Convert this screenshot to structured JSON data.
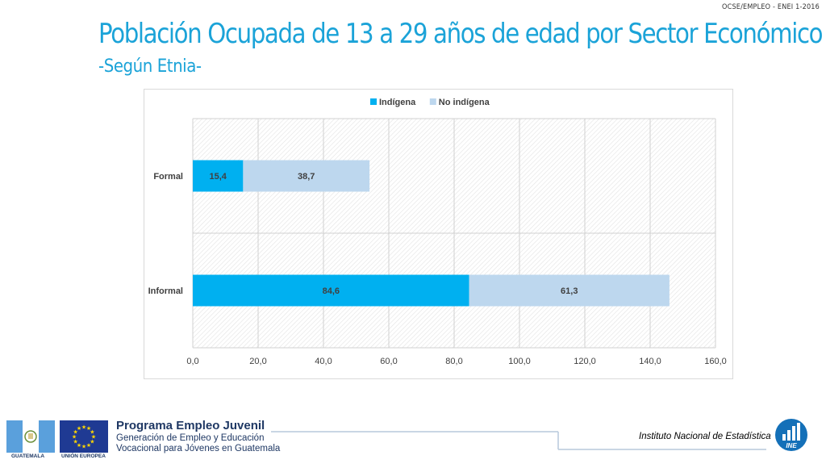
{
  "header": {
    "corner_label": "OCSE/EMPLEO -  ENEI 1-2016",
    "title": "Población Ocupada de 13 a 29 años de edad por Sector Económico",
    "subtitle": "-Según Etnia-"
  },
  "chart_data": {
    "type": "bar",
    "orientation": "horizontal",
    "stacked": true,
    "categories": [
      "Formal",
      "Informal"
    ],
    "series": [
      {
        "name": "Indígena",
        "values": [
          15.4,
          84.6
        ],
        "color": "#00b0f0",
        "labels": [
          "15,4",
          "84,6"
        ]
      },
      {
        "name": "No indígena",
        "values": [
          38.7,
          61.3
        ],
        "color": "#bdd7ee",
        "labels": [
          "38,7",
          "61,3"
        ]
      }
    ],
    "xlim": [
      0,
      160
    ],
    "xticks": [
      "0,0",
      "20,0",
      "40,0",
      "60,0",
      "80,0",
      "100,0",
      "120,0",
      "140,0",
      "160,0"
    ],
    "grid": true,
    "legend": "top"
  },
  "footer": {
    "program_title": "Programa Empleo Juvenil",
    "program_line1": "Generación de Empleo y Educación",
    "program_line2": "Vocacional para Jóvenes en Guatemala",
    "guatemala_label": "GUATEMALA",
    "eu_label": "UNIÓN EUROPEA",
    "institute": "Instituto Nacional de Estadística",
    "ine_logo_text": "INE"
  },
  "colors": {
    "title": "#1ba3d8",
    "footer_text": "#1f3864"
  }
}
